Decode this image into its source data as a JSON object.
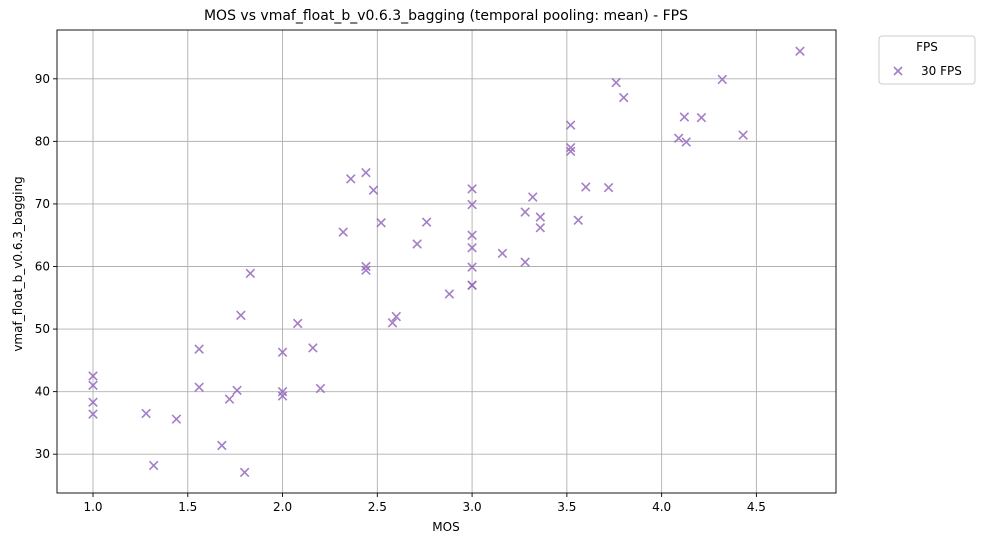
{
  "chart_data": {
    "type": "scatter",
    "title": "MOS vs vmaf_float_b_v0.6.3_bagging (temporal pooling: mean) - FPS",
    "xlabel": "MOS",
    "ylabel": "vmaf_float_b_v0.6.3_bagging",
    "xlim": [
      0.81,
      4.92
    ],
    "ylim": [
      23.8,
      97.8
    ],
    "xticks": [
      1.0,
      1.5,
      2.0,
      2.5,
      3.0,
      3.5,
      4.0,
      4.5
    ],
    "xtick_labels": [
      "1.0",
      "1.5",
      "2.0",
      "2.5",
      "3.0",
      "3.5",
      "4.0",
      "4.5"
    ],
    "yticks": [
      30,
      40,
      50,
      60,
      70,
      80,
      90
    ],
    "ytick_labels": [
      "30",
      "40",
      "50",
      "60",
      "70",
      "80",
      "90"
    ],
    "grid": true,
    "legend": {
      "title": "FPS",
      "placement": "outside-top-right"
    },
    "series": [
      {
        "name": "30 FPS",
        "marker": "x",
        "color": "#9467bd",
        "x": [
          1.0,
          1.0,
          1.0,
          1.0,
          1.28,
          1.32,
          1.44,
          1.56,
          1.56,
          1.68,
          1.72,
          1.76,
          1.78,
          1.8,
          1.83,
          2.0,
          2.0,
          2.0,
          2.08,
          2.16,
          2.2,
          2.32,
          2.36,
          2.44,
          2.44,
          2.44,
          2.48,
          2.52,
          2.58,
          2.6,
          2.71,
          2.76,
          2.88,
          3.0,
          3.0,
          3.0,
          3.0,
          3.0,
          3.0,
          3.0,
          3.16,
          3.28,
          3.28,
          3.32,
          3.36,
          3.36,
          3.52,
          3.52,
          3.52,
          3.56,
          3.6,
          3.72,
          3.76,
          3.8,
          4.09,
          4.12,
          4.13,
          4.21,
          4.32,
          4.43,
          4.73
        ],
        "y": [
          42.5,
          41.0,
          38.3,
          36.4,
          36.5,
          28.2,
          35.6,
          46.8,
          40.7,
          31.4,
          38.8,
          40.2,
          52.2,
          27.1,
          58.9,
          46.3,
          40.0,
          39.3,
          50.9,
          47.0,
          40.5,
          65.5,
          74.0,
          75.0,
          60.0,
          59.4,
          72.2,
          67.0,
          51.0,
          52.0,
          63.6,
          67.1,
          55.6,
          72.4,
          69.9,
          65.0,
          63.0,
          59.9,
          57.0,
          57.0,
          62.1,
          68.7,
          60.7,
          71.1,
          67.9,
          66.2,
          82.6,
          79.0,
          78.4,
          67.4,
          72.7,
          72.6,
          89.4,
          87.0,
          80.5,
          83.9,
          79.9,
          83.8,
          89.9,
          81.0,
          94.4
        ]
      }
    ]
  }
}
